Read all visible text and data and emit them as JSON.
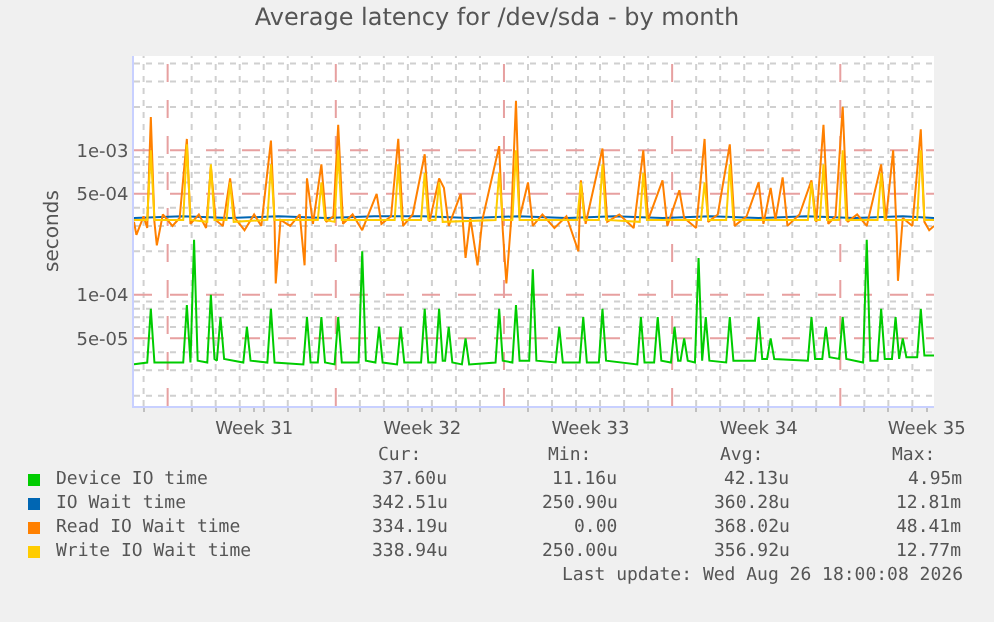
{
  "chart_data": {
    "type": "line",
    "title": "Average latency for /dev/sda - by month",
    "ylabel": "seconds",
    "log": "y",
    "legend": "bottom left",
    "grid": true,
    "line_style": "solid",
    "marker": "none",
    "xlim": [
      "2026-07-24T00:00",
      "2026-08-26T07:12"
    ],
    "ylim": [
      1.7e-05,
      0.0045
    ],
    "xticks": [
      {
        "value": "2026-07-24T09:36",
        "label": null
      },
      {
        "value": "2026-07-26T09:36",
        "label": null
      },
      {
        "value": "2026-07-27T09:36",
        "label": null
      },
      {
        "value": "2026-07-28T09:36",
        "label": null
      },
      {
        "value": "2026-07-29T00:00",
        "label": "Week 31"
      },
      {
        "value": "2026-07-29T09:36",
        "label": null
      },
      {
        "value": "2026-07-30T09:36",
        "label": null
      },
      {
        "value": "2026-07-31T09:36",
        "label": null
      },
      {
        "value": "2026-08-02T09:36",
        "label": null
      },
      {
        "value": "2026-08-03T09:36",
        "label": null
      },
      {
        "value": "2026-08-04T09:36",
        "label": null
      },
      {
        "value": "2026-08-05T00:00",
        "label": "Week 32"
      },
      {
        "value": "2026-08-05T09:36",
        "label": null
      },
      {
        "value": "2026-08-06T09:36",
        "label": null
      },
      {
        "value": "2026-08-07T09:36",
        "label": null
      },
      {
        "value": "2026-08-09T09:36",
        "label": null
      },
      {
        "value": "2026-08-10T09:36",
        "label": null
      },
      {
        "value": "2026-08-11T09:36",
        "label": null
      },
      {
        "value": "2026-08-12T00:00",
        "label": "Week 33"
      },
      {
        "value": "2026-08-12T09:36",
        "label": null
      },
      {
        "value": "2026-08-13T09:36",
        "label": null
      },
      {
        "value": "2026-08-14T09:36",
        "label": null
      },
      {
        "value": "2026-08-16T09:36",
        "label": null
      },
      {
        "value": "2026-08-17T09:36",
        "label": null
      },
      {
        "value": "2026-08-18T09:36",
        "label": null
      },
      {
        "value": "2026-08-19T00:00",
        "label": "Week 34"
      },
      {
        "value": "2026-08-19T09:36",
        "label": null
      },
      {
        "value": "2026-08-20T09:36",
        "label": null
      },
      {
        "value": "2026-08-21T09:36",
        "label": null
      },
      {
        "value": "2026-08-23T09:36",
        "label": null
      },
      {
        "value": "2026-08-24T09:36",
        "label": null
      },
      {
        "value": "2026-08-25T09:36",
        "label": null
      },
      {
        "value": "2026-08-26T00:00",
        "label": "Week 35"
      }
    ],
    "yticks": [
      {
        "value": 2e-05,
        "label": null
      },
      {
        "value": 3e-05,
        "label": null
      },
      {
        "value": 4e-05,
        "label": null
      },
      {
        "value": 5e-05,
        "label": "5e-05"
      },
      {
        "value": 6e-05,
        "label": null
      },
      {
        "value": 7e-05,
        "label": null
      },
      {
        "value": 8e-05,
        "label": null
      },
      {
        "value": 9e-05,
        "label": null
      },
      {
        "value": 0.0001,
        "label": "1e-04"
      },
      {
        "value": 0.0002,
        "label": null
      },
      {
        "value": 0.0003,
        "label": null
      },
      {
        "value": 0.0004,
        "label": null
      },
      {
        "value": 0.0005,
        "label": "5e-04"
      },
      {
        "value": 0.0006,
        "label": null
      },
      {
        "value": 0.0007,
        "label": null
      },
      {
        "value": 0.0008,
        "label": null
      },
      {
        "value": 0.0009,
        "label": null
      },
      {
        "value": 0.001,
        "label": "1e-03"
      },
      {
        "value": 0.002,
        "label": null
      },
      {
        "value": 0.003,
        "label": null
      },
      {
        "value": 0.004,
        "label": null
      }
    ],
    "ref_lines": [
      {
        "axis": "x",
        "value": "2026-07-25T09:36",
        "label": null,
        "color": "#e7a0a0",
        "line_style": "dashed"
      },
      {
        "axis": "x",
        "value": "2026-08-01T09:36",
        "label": null,
        "color": "#e7a0a0",
        "line_style": "dashed"
      },
      {
        "axis": "x",
        "value": "2026-08-08T09:36",
        "label": null,
        "color": "#e7a0a0",
        "line_style": "dashed"
      },
      {
        "axis": "x",
        "value": "2026-08-15T09:36",
        "label": null,
        "color": "#e7a0a0",
        "line_style": "dashed"
      },
      {
        "axis": "x",
        "value": "2026-08-22T09:36",
        "label": null,
        "color": "#e7a0a0",
        "line_style": "dashed"
      }
    ],
    "series": [
      {
        "name": "Device IO time",
        "color": "#00cc00",
        "x": [
          "2026-07-24T00:00",
          "2026-07-24T13:12",
          "2026-07-24T16:48",
          "2026-07-24T20:24",
          "2026-07-26T01:12",
          "2026-07-26T04:48",
          "2026-07-26T08:24",
          "2026-07-26T12:00",
          "2026-07-26T15:36",
          "2026-07-27T01:12",
          "2026-07-27T04:48",
          "2026-07-27T08:24",
          "2026-07-27T10:48",
          "2026-07-27T14:24",
          "2026-07-27T18:00",
          "2026-07-28T13:12",
          "2026-07-28T16:48",
          "2026-07-28T20:24",
          "2026-07-29T13:12",
          "2026-07-29T16:48",
          "2026-07-29T20:24",
          "2026-07-31T01:12",
          "2026-07-31T04:48",
          "2026-07-31T08:24",
          "2026-07-31T15:36",
          "2026-07-31T19:12",
          "2026-07-31T22:48",
          "2026-08-01T08:24",
          "2026-08-01T12:00",
          "2026-08-01T15:36",
          "2026-08-02T08:24",
          "2026-08-02T12:00",
          "2026-08-02T15:36",
          "2026-08-03T01:12",
          "2026-08-03T04:48",
          "2026-08-03T08:24",
          "2026-08-03T22:48",
          "2026-08-04T02:24",
          "2026-08-04T06:00",
          "2026-08-04T22:48",
          "2026-08-05T02:24",
          "2026-08-05T06:00",
          "2026-08-05T13:12",
          "2026-08-05T16:48",
          "2026-08-05T20:24",
          "2026-08-05T22:48",
          "2026-08-06T02:24",
          "2026-08-06T06:00",
          "2026-08-06T15:36",
          "2026-08-06T19:12",
          "2026-08-06T22:48",
          "2026-08-08T01:12",
          "2026-08-08T04:48",
          "2026-08-08T08:24",
          "2026-08-08T18:00",
          "2026-08-08T21:36",
          "2026-08-09T01:12",
          "2026-08-09T10:48",
          "2026-08-09T14:24",
          "2026-08-09T18:00",
          "2026-08-10T13:12",
          "2026-08-10T16:48",
          "2026-08-10T20:24",
          "2026-08-11T13:12",
          "2026-08-11T16:48",
          "2026-08-11T20:24",
          "2026-08-12T08:24",
          "2026-08-12T12:00",
          "2026-08-12T15:36",
          "2026-08-13T22:48",
          "2026-08-14T02:24",
          "2026-08-14T06:00",
          "2026-08-14T15:36",
          "2026-08-14T19:12",
          "2026-08-14T22:48",
          "2026-08-15T08:24",
          "2026-08-15T12:00",
          "2026-08-15T15:36",
          "2026-08-15T18:00",
          "2026-08-15T21:36",
          "2026-08-16T01:12",
          "2026-08-16T08:24",
          "2026-08-16T12:00",
          "2026-08-16T15:36",
          "2026-08-16T19:12",
          "2026-08-16T22:48",
          "2026-08-17T15:36",
          "2026-08-17T19:12",
          "2026-08-17T22:48",
          "2026-08-18T20:24",
          "2026-08-19T00:00",
          "2026-08-19T03:36",
          "2026-08-19T08:24",
          "2026-08-19T12:00",
          "2026-08-19T15:36",
          "2026-08-21T01:12",
          "2026-08-21T04:48",
          "2026-08-21T08:24",
          "2026-08-21T15:36",
          "2026-08-21T19:12",
          "2026-08-21T22:48",
          "2026-08-22T08:24",
          "2026-08-22T12:00",
          "2026-08-22T15:36",
          "2026-08-23T08:24",
          "2026-08-23T12:00",
          "2026-08-23T15:36",
          "2026-08-23T22:48",
          "2026-08-24T02:24",
          "2026-08-24T06:00",
          "2026-08-24T13:12",
          "2026-08-24T16:48",
          "2026-08-24T20:24",
          "2026-08-25T00:00",
          "2026-08-25T03:36",
          "2026-08-25T14:24",
          "2026-08-25T18:00",
          "2026-08-25T21:36",
          "2026-08-26T07:12"
        ],
        "values": [
          3.3e-05,
          3.4e-05,
          8e-05,
          3.4e-05,
          3.4e-05,
          8.5e-05,
          3.4e-05,
          0.00024,
          3.5e-05,
          3.4e-05,
          0.0001,
          3.6e-05,
          3.5e-05,
          7e-05,
          3.6e-05,
          3.4e-05,
          6e-05,
          3.5e-05,
          3.4e-05,
          8e-05,
          3.4e-05,
          3.3e-05,
          7e-05,
          3.4e-05,
          3.4e-05,
          7e-05,
          3.4e-05,
          3.3e-05,
          7e-05,
          3.4e-05,
          3.4e-05,
          0.0002,
          3.5e-05,
          3.4e-05,
          6e-05,
          3.4e-05,
          3.3e-05,
          6e-05,
          3.4e-05,
          3.4e-05,
          8e-05,
          3.4e-05,
          3.4e-05,
          8e-05,
          3.5e-05,
          3.5e-05,
          6e-05,
          3.4e-05,
          3.3e-05,
          5e-05,
          3.3e-05,
          3.4e-05,
          8e-05,
          3.5e-05,
          3.4e-05,
          8.5e-05,
          3.5e-05,
          3.5e-05,
          0.00015,
          3.5e-05,
          3.4e-05,
          6e-05,
          3.4e-05,
          3.4e-05,
          7e-05,
          3.4e-05,
          3.4e-05,
          8e-05,
          3.5e-05,
          3.3e-05,
          7e-05,
          3.4e-05,
          3.4e-05,
          7e-05,
          3.5e-05,
          3.4e-05,
          6e-05,
          3.5e-05,
          3.5e-05,
          5e-05,
          3.5e-05,
          3.4e-05,
          0.00018,
          3.5e-05,
          7e-05,
          3.5e-05,
          3.4e-05,
          7e-05,
          3.5e-05,
          3.5e-05,
          7e-05,
          3.6e-05,
          3.6e-05,
          5e-05,
          3.6e-05,
          3.5e-05,
          7e-05,
          3.6e-05,
          3.6e-05,
          6e-05,
          3.7e-05,
          3.6e-05,
          7e-05,
          3.6e-05,
          3.4e-05,
          0.00024,
          3.5e-05,
          3.5e-05,
          8e-05,
          3.6e-05,
          3.6e-05,
          7e-05,
          3.6e-05,
          5e-05,
          3.7e-05,
          3.7e-05,
          8e-05,
          3.8e-05,
          3.8e-05
        ]
      },
      {
        "name": "IO Wait time",
        "color": "#0066b3",
        "x": [
          "2026-07-24T00:00",
          "2026-07-26T00:00",
          "2026-07-28T00:00",
          "2026-07-30T00:00",
          "2026-08-01T00:00",
          "2026-08-03T00:00",
          "2026-08-05T00:00",
          "2026-08-07T00:00",
          "2026-08-09T00:00",
          "2026-08-11T00:00",
          "2026-08-13T00:00",
          "2026-08-15T00:00",
          "2026-08-17T00:00",
          "2026-08-19T00:00",
          "2026-08-21T00:00",
          "2026-08-23T00:00",
          "2026-08-25T00:00",
          "2026-08-26T07:12"
        ],
        "values": [
          0.00034,
          0.00035,
          0.00034,
          0.00035,
          0.00034,
          0.00035,
          0.00035,
          0.00034,
          0.00035,
          0.00034,
          0.00035,
          0.00034,
          0.00035,
          0.00034,
          0.00035,
          0.00034,
          0.00035,
          0.00034
        ]
      },
      {
        "name": "Read IO Wait time",
        "color": "#ff8000",
        "x": [
          "2026-07-24T00:00",
          "2026-07-24T02:24",
          "2026-07-24T09:36",
          "2026-07-24T13:12",
          "2026-07-24T16:48",
          "2026-07-24T20:24",
          "2026-07-24T22:48",
          "2026-07-25T04:48",
          "2026-07-25T14:24",
          "2026-07-25T21:36",
          "2026-07-26T04:48",
          "2026-07-26T08:24",
          "2026-07-26T16:48",
          "2026-07-27T00:00",
          "2026-07-27T04:48",
          "2026-07-27T09:36",
          "2026-07-27T16:48",
          "2026-07-28T00:00",
          "2026-07-28T04:48",
          "2026-07-28T14:24",
          "2026-07-29T00:00",
          "2026-07-29T07:12",
          "2026-07-29T16:48",
          "2026-07-29T20:24",
          "2026-07-29T21:36",
          "2026-07-30T02:24",
          "2026-07-30T12:00",
          "2026-07-30T21:36",
          "2026-07-31T02:24",
          "2026-07-31T04:48",
          "2026-07-31T10:48",
          "2026-07-31T19:12",
          "2026-08-01T00:00",
          "2026-08-01T07:12",
          "2026-08-01T12:00",
          "2026-08-01T16:48",
          "2026-08-02T02:24",
          "2026-08-02T12:00",
          "2026-08-03T02:24",
          "2026-08-03T07:12",
          "2026-08-03T16:48",
          "2026-08-04T00:00",
          "2026-08-04T04:48",
          "2026-08-04T14:24",
          "2026-08-05T02:24",
          "2026-08-05T07:12",
          "2026-08-05T16:48",
          "2026-08-05T21:36",
          "2026-08-06T02:24",
          "2026-08-06T14:24",
          "2026-08-06T19:12",
          "2026-08-07T00:00",
          "2026-08-07T07:12",
          "2026-08-07T12:00",
          "2026-08-08T04:48",
          "2026-08-08T08:24",
          "2026-08-08T12:00",
          "2026-08-08T16:48",
          "2026-08-08T21:36",
          "2026-08-09T01:12",
          "2026-08-09T09:36",
          "2026-08-09T14:24",
          "2026-08-10T00:00",
          "2026-08-10T12:00",
          "2026-08-11T00:00",
          "2026-08-11T12:00",
          "2026-08-11T14:24",
          "2026-08-11T19:12",
          "2026-08-12T12:00",
          "2026-08-12T16:48",
          "2026-08-13T04:48",
          "2026-08-13T19:12",
          "2026-08-14T04:48",
          "2026-08-14T09:36",
          "2026-08-15T00:00",
          "2026-08-15T04:48",
          "2026-08-15T16:48",
          "2026-08-15T21:36",
          "2026-08-16T09:36",
          "2026-08-16T18:00",
          "2026-08-16T21:36",
          "2026-08-17T07:12",
          "2026-08-17T19:12",
          "2026-08-18T00:00",
          "2026-08-18T12:00",
          "2026-08-19T00:00",
          "2026-08-19T04:48",
          "2026-08-19T12:00",
          "2026-08-19T16:48",
          "2026-08-20T00:00",
          "2026-08-20T04:48",
          "2026-08-20T16:48",
          "2026-08-21T04:48",
          "2026-08-21T09:36",
          "2026-08-21T16:48",
          "2026-08-21T21:36",
          "2026-08-22T04:48",
          "2026-08-22T12:00",
          "2026-08-22T16:48",
          "2026-08-23T02:24",
          "2026-08-23T12:00",
          "2026-08-24T02:24",
          "2026-08-24T07:12",
          "2026-08-24T14:24",
          "2026-08-24T18:00",
          "2026-08-24T19:12",
          "2026-08-25T00:00",
          "2026-08-25T09:36",
          "2026-08-25T18:00",
          "2026-08-25T21:36",
          "2026-08-26T02:24",
          "2026-08-26T07:12"
        ],
        "values": [
          0.00032,
          0.00026,
          0.00035,
          0.00029,
          0.0017,
          0.00032,
          0.00022,
          0.00036,
          0.0003,
          0.00034,
          0.0012,
          0.00031,
          0.00036,
          0.00029,
          0.00077,
          0.00033,
          0.0003,
          0.00064,
          0.00034,
          0.00028,
          0.00036,
          0.0003,
          0.00117,
          0.00032,
          0.00012,
          0.00033,
          0.0003,
          0.00036,
          0.00016,
          0.00064,
          0.00031,
          0.0008,
          0.00032,
          0.00035,
          0.0015,
          0.00031,
          0.00036,
          0.00028,
          0.0005,
          0.00031,
          0.00035,
          0.0012,
          0.0003,
          0.00036,
          0.00094,
          0.00032,
          0.00064,
          0.00055,
          0.0003,
          0.0005,
          0.00018,
          0.00034,
          0.00016,
          0.00033,
          0.00107,
          0.00028,
          0.00012,
          0.00033,
          0.0022,
          0.00034,
          0.0006,
          0.0003,
          0.00036,
          0.00029,
          0.00035,
          0.0002,
          0.00062,
          0.00031,
          0.00103,
          0.00032,
          0.00036,
          0.00029,
          0.001,
          0.00033,
          0.00062,
          0.0003,
          0.00053,
          0.00034,
          0.00029,
          0.0012,
          0.00032,
          0.00036,
          0.0011,
          0.0003,
          0.00035,
          0.0006,
          0.00031,
          0.00055,
          0.00033,
          0.00065,
          0.0003,
          0.00036,
          0.00062,
          0.00032,
          0.0015,
          0.00031,
          0.00035,
          0.002,
          0.00032,
          0.00036,
          0.0003,
          0.0008,
          0.00033,
          0.001,
          0.00026,
          0.000125,
          0.00034,
          0.0003,
          0.0014,
          0.00032,
          0.00028,
          0.0003
        ]
      },
      {
        "name": "Write IO Wait time",
        "color": "#ffcc00",
        "x": [
          "2026-07-24T00:00",
          "2026-07-24T13:12",
          "2026-07-24T16:48",
          "2026-07-24T20:24",
          "2026-07-26T01:12",
          "2026-07-26T04:48",
          "2026-07-26T08:24",
          "2026-07-27T01:12",
          "2026-07-27T04:48",
          "2026-07-27T08:24",
          "2026-07-27T20:24",
          "2026-07-28T00:00",
          "2026-07-28T03:36",
          "2026-07-29T13:12",
          "2026-07-29T16:48",
          "2026-07-29T20:24",
          "2026-07-31T15:36",
          "2026-07-31T19:12",
          "2026-07-31T22:48",
          "2026-08-01T08:24",
          "2026-08-01T12:00",
          "2026-08-01T15:36",
          "2026-08-03T20:24",
          "2026-08-04T00:00",
          "2026-08-04T03:36",
          "2026-08-04T22:48",
          "2026-08-05T02:24",
          "2026-08-05T06:00",
          "2026-08-05T13:12",
          "2026-08-05T16:48",
          "2026-08-05T20:24",
          "2026-08-08T01:12",
          "2026-08-08T04:48",
          "2026-08-08T08:24",
          "2026-08-08T18:00",
          "2026-08-08T21:36",
          "2026-08-09T01:12",
          "2026-08-11T10:48",
          "2026-08-11T14:24",
          "2026-08-11T18:00",
          "2026-08-12T08:24",
          "2026-08-12T12:00",
          "2026-08-12T15:36",
          "2026-08-14T01:12",
          "2026-08-14T04:48",
          "2026-08-14T08:24",
          "2026-08-16T14:24",
          "2026-08-16T18:00",
          "2026-08-16T21:36",
          "2026-08-17T15:36",
          "2026-08-17T19:12",
          "2026-08-17T22:48",
          "2026-08-21T01:12",
          "2026-08-21T04:48",
          "2026-08-21T08:24",
          "2026-08-21T13:12",
          "2026-08-21T16:48",
          "2026-08-21T20:24",
          "2026-08-22T08:24",
          "2026-08-22T12:00",
          "2026-08-22T15:36",
          "2026-08-23T22:48",
          "2026-08-24T02:24",
          "2026-08-24T06:00",
          "2026-08-25T14:24",
          "2026-08-25T18:00",
          "2026-08-25T21:36",
          "2026-08-26T07:12"
        ],
        "values": [
          0.00033,
          0.00033,
          0.001,
          0.00033,
          0.00033,
          0.0011,
          0.00033,
          0.00032,
          0.0008,
          0.00033,
          0.00033,
          0.0006,
          0.00032,
          0.00033,
          0.0008,
          0.00033,
          0.00033,
          0.0006,
          0.00033,
          0.00032,
          0.001,
          0.00033,
          0.00033,
          0.0008,
          0.00033,
          0.00033,
          0.0007,
          0.00033,
          0.00033,
          0.0006,
          0.00032,
          0.00033,
          0.0007,
          0.00033,
          0.00033,
          0.001,
          0.00033,
          0.00033,
          0.0006,
          0.00033,
          0.00033,
          0.0008,
          0.00033,
          0.00032,
          0.0007,
          0.00033,
          0.00033,
          0.0006,
          0.00033,
          0.00033,
          0.0008,
          0.00033,
          0.00033,
          0.0006,
          0.00033,
          0.00033,
          0.0008,
          0.00033,
          0.00033,
          0.001,
          0.00033,
          0.00033,
          0.0007,
          0.00033,
          0.00033,
          0.001,
          0.00033,
          0.00033
        ]
      }
    ],
    "annotations": [
      "Cur:",
      "Min:",
      "Avg:",
      "Max:",
      "37.60u",
      "11.16u",
      "42.13u",
      "4.95m",
      "342.51u",
      "250.90u",
      "360.28u",
      "12.81m",
      "334.19u",
      "0.00",
      "368.02u",
      "48.41m",
      "338.94u",
      "250.00u",
      "356.92u",
      "12.77m",
      "Last update: Wed Aug 26 18:00:08 2026"
    ]
  }
}
